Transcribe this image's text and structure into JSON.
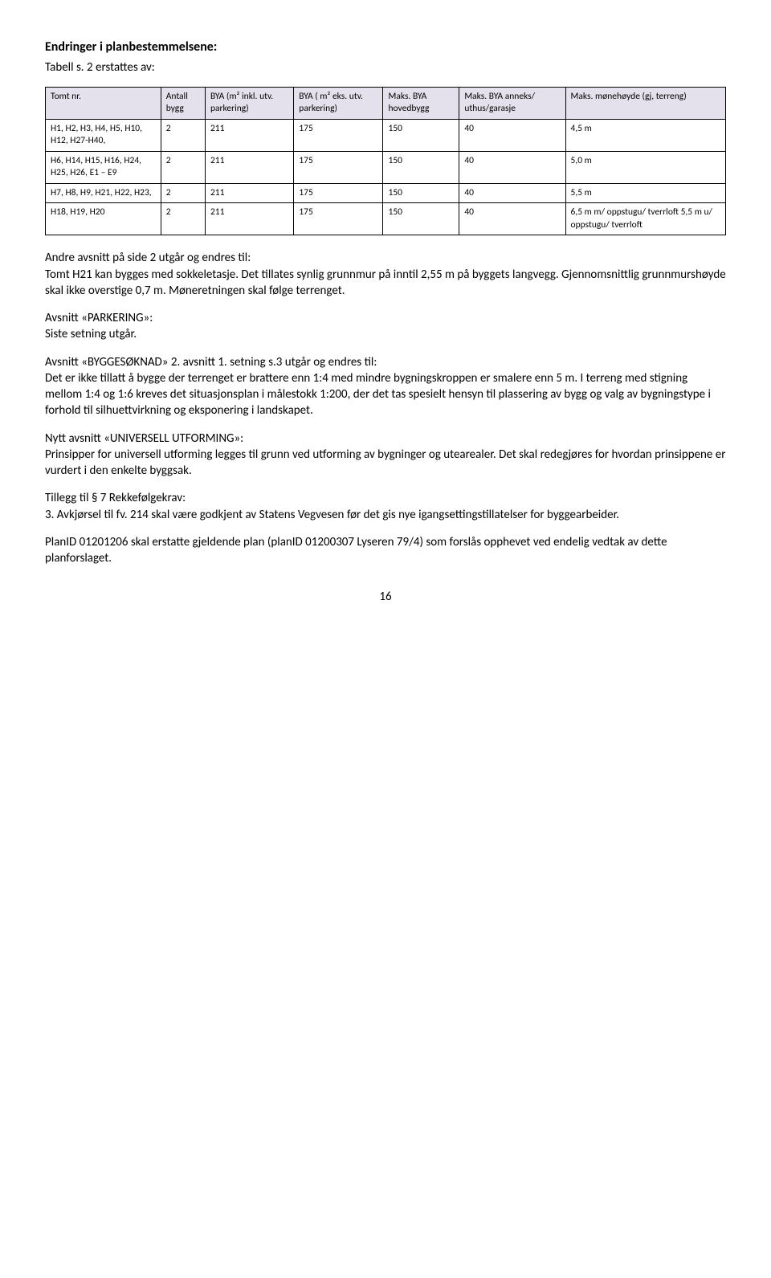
{
  "heading": "Endringer i planbestemmelsene:",
  "subheading": "Tabell s. 2 erstattes av:",
  "table": {
    "header_bg": "#e4e0ec",
    "border_color": "#000000",
    "columns": [
      "Tomt nr.",
      "Antall bygg",
      "BYA (m² inkl. utv. parkering)",
      "BYA ( m² eks. utv. parkering)",
      "Maks. BYA hovedbygg",
      "Maks. BYA anneks/ uthus/garasje",
      "Maks. mønehøyde (gj, terreng)"
    ],
    "rows": [
      [
        "H1, H2, H3, H4, H5, H10, H12, H27-H40,",
        "2",
        "211",
        "175",
        "150",
        "40",
        "4,5 m"
      ],
      [
        "H6, H14, H15, H16, H24, H25, H26, E1 – E9",
        "2",
        "211",
        "175",
        "150",
        "40",
        "5,0 m"
      ],
      [
        "H7, H8, H9, H21, H22, H23,",
        "2",
        "211",
        "175",
        "150",
        "40",
        "5,5 m"
      ],
      [
        "H18, H19, H20",
        "2",
        "211",
        "175",
        "150",
        "40",
        "6,5 m m/ oppstugu/ tverrloft 5,5 m u/ oppstugu/ tverrloft"
      ]
    ]
  },
  "paragraphs": {
    "p1": "Andre avsnitt på side 2 utgår og endres til:\nTomt H21 kan bygges med sokkeletasje. Det tillates synlig grunnmur på inntil 2,55 m på byggets langvegg. Gjennomsnittlig grunnmurshøyde skal ikke overstige 0,7 m. Møneretningen skal følge terrenget.",
    "p2a": "Avsnitt «PARKERING»:",
    "p2b": "Siste setning utgår.",
    "p3": "Avsnitt «BYGGESØKNAD» 2. avsnitt 1. setning s.3 utgår og endres til:\nDet er ikke tillatt å bygge der terrenget er brattere enn 1:4 med mindre bygningskroppen er smalere enn 5 m. I terreng med stigning mellom 1:4 og 1:6 kreves det situasjonsplan i målestokk 1:200, der det tas spesielt hensyn til plassering av bygg og valg av bygningstype i forhold til silhuettvirkning og eksponering i landskapet.",
    "p4": "Nytt avsnitt «UNIVERSELL UTFORMING»:\nPrinsipper for universell utforming legges til grunn ved utforming av bygninger og utearealer. Det skal redegjøres for hvordan prinsippene er vurdert i den enkelte byggsak.",
    "p5": "Tillegg til § 7 Rekkefølgekrav:\n3. Avkjørsel til fv. 214 skal være godkjent av Statens Vegvesen før det gis nye igangsettingstillatelser for byggearbeider.",
    "p6": "PlanID 01201206 skal erstatte gjeldende plan (planID 01200307 Lyseren 79/4) som forslås opphevet ved endelig vedtak av dette planforslaget."
  },
  "page_number": "16"
}
